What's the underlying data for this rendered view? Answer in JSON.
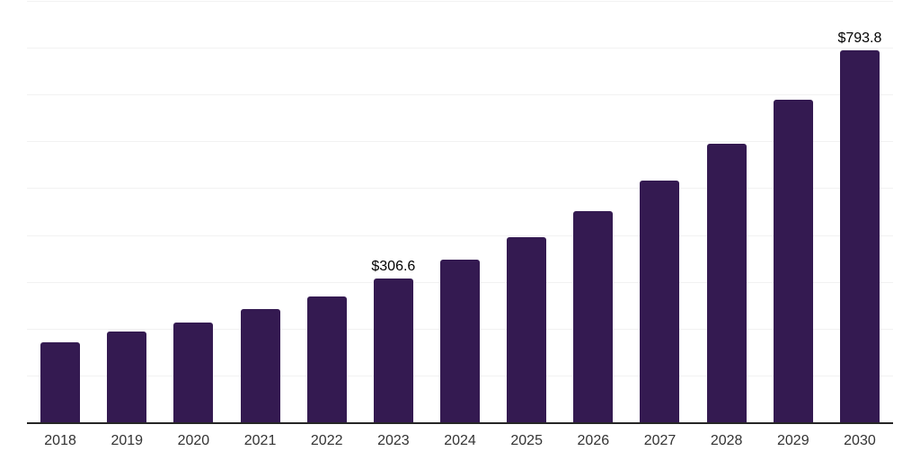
{
  "chart_data": {
    "type": "bar",
    "title": "",
    "xlabel": "",
    "ylabel": "",
    "categories": [
      "2018",
      "2019",
      "2020",
      "2021",
      "2022",
      "2023",
      "2024",
      "2025",
      "2026",
      "2027",
      "2028",
      "2029",
      "2030"
    ],
    "values": [
      170,
      193,
      213,
      241,
      268,
      306.6,
      348,
      395,
      451,
      517,
      595,
      688,
      793.8
    ],
    "data_labels": [
      {
        "category": "2023",
        "text": "$306.6"
      },
      {
        "category": "2030",
        "text": "$793.8"
      }
    ],
    "ylim": [
      0,
      900
    ],
    "gridline_step": 100,
    "grid": "horizontal-only",
    "legend": "none",
    "y_tick_labels_visible": false,
    "bar_color": "#341a51",
    "gridline_color": "#f2f2f2",
    "axis_line_color": "#262626",
    "tick_label_color": "#333333",
    "data_label_color": "#000000"
  }
}
